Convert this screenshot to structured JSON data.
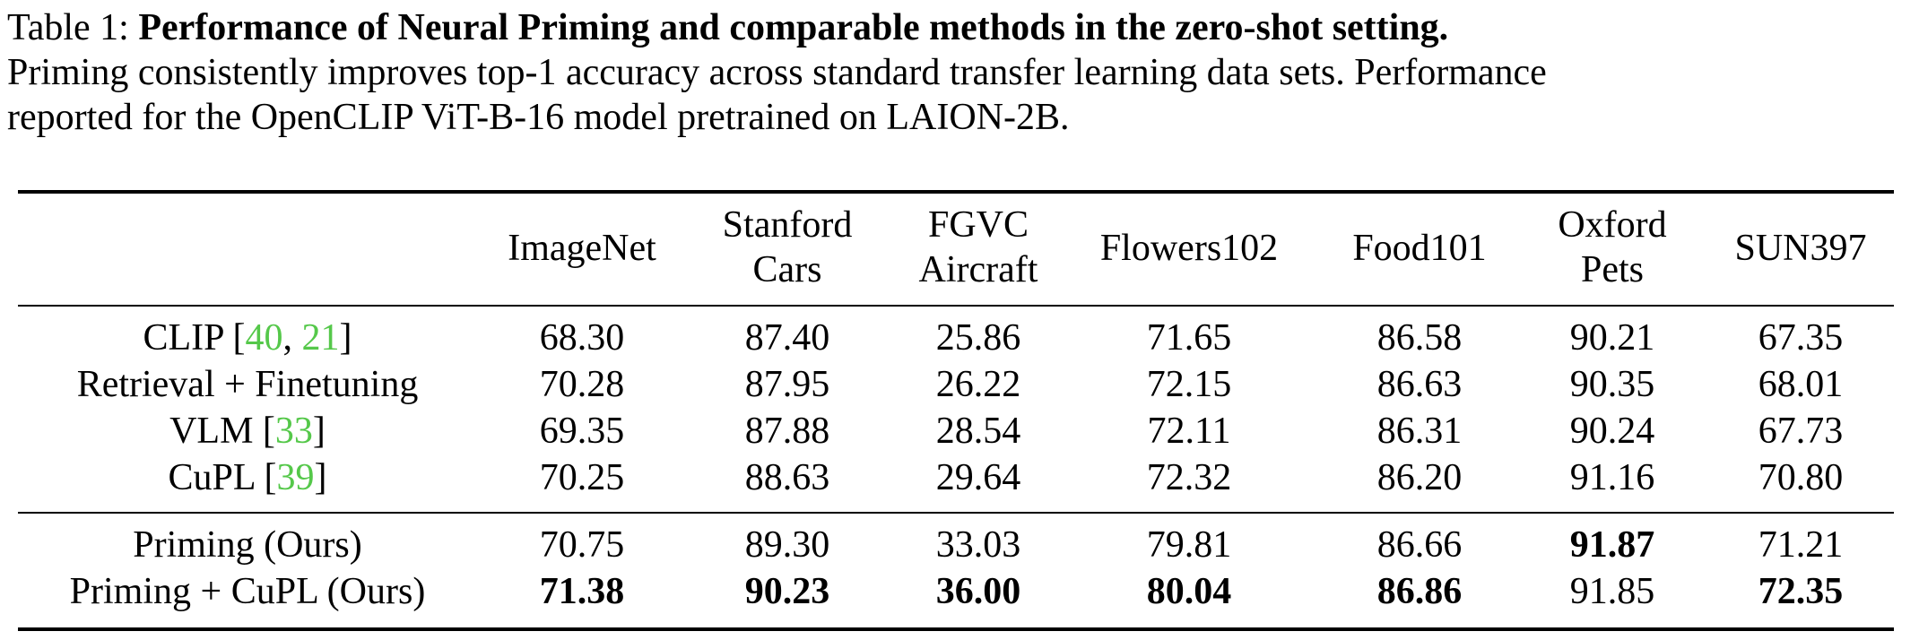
{
  "caption": {
    "label": "Table 1: ",
    "title": "Performance of Neural Priming and comparable methods in the zero-shot setting.",
    "line2": "Priming consistently improves top-1 accuracy across standard transfer learning data sets. Performance",
    "line3": "reported for the OpenCLIP ViT-B-16 model pretrained on LAION-2B."
  },
  "columns": [
    {
      "line1": "ImageNet",
      "line2": ""
    },
    {
      "line1": "Stanford",
      "line2": "Cars"
    },
    {
      "line1": "FGVC",
      "line2": "Aircraft"
    },
    {
      "line1": "Flowers102",
      "line2": ""
    },
    {
      "line1": "Food101",
      "line2": ""
    },
    {
      "line1": "Oxford",
      "line2": "Pets"
    },
    {
      "line1": "SUN397",
      "line2": ""
    }
  ],
  "rows": [
    {
      "method": "CLIP [",
      "cites": [
        "40",
        "21"
      ],
      "close": "]",
      "values": [
        "68.30",
        "87.40",
        "25.86",
        "71.65",
        "86.58",
        "90.21",
        "67.35"
      ],
      "bold": [
        false,
        false,
        false,
        false,
        false,
        false,
        false
      ]
    },
    {
      "method": "Retrieval + Finetuning",
      "cites": [],
      "close": "",
      "values": [
        "70.28",
        "87.95",
        "26.22",
        "72.15",
        "86.63",
        "90.35",
        "68.01"
      ],
      "bold": [
        false,
        false,
        false,
        false,
        false,
        false,
        false
      ]
    },
    {
      "method": "VLM [",
      "cites": [
        "33"
      ],
      "close": "]",
      "values": [
        "69.35",
        "87.88",
        "28.54",
        "72.11",
        "86.31",
        "90.24",
        "67.73"
      ],
      "bold": [
        false,
        false,
        false,
        false,
        false,
        false,
        false
      ]
    },
    {
      "method": "CuPL [",
      "cites": [
        "39"
      ],
      "close": "]",
      "values": [
        "70.25",
        "88.63",
        "29.64",
        "72.32",
        "86.20",
        "91.16",
        "70.80"
      ],
      "bold": [
        false,
        false,
        false,
        false,
        false,
        false,
        false
      ]
    },
    {
      "method": "Priming (Ours)",
      "cites": [],
      "close": "",
      "values": [
        "70.75",
        "89.30",
        "33.03",
        "79.81",
        "86.66",
        "91.87",
        "71.21"
      ],
      "bold": [
        false,
        false,
        false,
        false,
        false,
        true,
        false
      ]
    },
    {
      "method": "Priming + CuPL (Ours)",
      "cites": [],
      "close": "",
      "values": [
        "71.38",
        "90.23",
        "36.00",
        "80.04",
        "86.86",
        "91.85",
        "72.35"
      ],
      "bold": [
        true,
        true,
        true,
        true,
        true,
        false,
        true
      ]
    }
  ]
}
